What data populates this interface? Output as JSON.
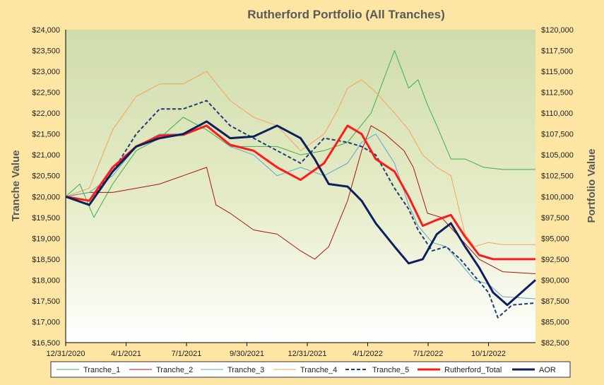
{
  "chart_data": {
    "type": "line",
    "title": "Rutherford Portfolio (All Tranches)",
    "ylabel": "Tranche Value",
    "y2label": "Portfolio Value",
    "ylim": [
      16500,
      24000
    ],
    "y2lim": [
      82500,
      120000
    ],
    "y_ticks": [
      "$16,500",
      "$17,000",
      "$17,500",
      "$18,000",
      "$18,500",
      "$19,000",
      "$19,500",
      "$20,000",
      "$20,500",
      "$21,000",
      "$21,500",
      "$22,000",
      "$22,500",
      "$23,000",
      "$23,500",
      "$24,000"
    ],
    "y2_ticks": [
      "$82,500",
      "$85,000",
      "$87,500",
      "$90,000",
      "$92,500",
      "$95,000",
      "$97,500",
      "$100,000",
      "$102,500",
      "$105,000",
      "$107,500",
      "$110,000",
      "$112,500",
      "$115,000",
      "$117,500",
      "$120,000"
    ],
    "x_ticks": [
      "12/31/2020",
      "4/1/2021",
      "7/1/2021",
      "9/30/2021",
      "12/31/2021",
      "4/1/2022",
      "7/1/2022",
      "10/1/2022"
    ],
    "grid": false,
    "legend_position": "bottom",
    "series": [
      {
        "name": "Tranche_1",
        "color": "#3fae49",
        "width": 1,
        "dash": false,
        "axis": "left",
        "x": [
          0,
          0.3,
          0.6,
          1,
          1.5,
          2,
          2.5,
          3,
          3.5,
          4,
          4.5,
          5,
          5.5,
          6,
          6.5,
          7,
          7.3,
          7.5,
          7.7,
          7.9,
          8.2,
          8.5,
          8.9,
          9.3,
          10.0
        ],
        "values": [
          20000,
          20300,
          19500,
          20300,
          21100,
          21400,
          21900,
          21600,
          21200,
          21200,
          21200,
          21000,
          21100,
          21300,
          22000,
          23500,
          22600,
          22800,
          22200,
          21700,
          20900,
          20900,
          20700,
          20650,
          20650
        ]
      },
      {
        "name": "Tranche_2",
        "color": "#a31515",
        "width": 1,
        "dash": false,
        "axis": "left",
        "x": [
          0,
          0.5,
          1,
          1.5,
          2,
          2.5,
          3,
          3.2,
          3.5,
          4,
          4.5,
          5,
          5.3,
          5.6,
          6,
          6.3,
          6.5,
          6.8,
          7,
          7.2,
          7.4,
          7.7,
          8,
          8.4,
          8.8,
          9.3,
          10.0
        ],
        "values": [
          20000,
          20100,
          20100,
          20200,
          20300,
          20500,
          20700,
          19800,
          19600,
          19200,
          19100,
          18700,
          18500,
          18800,
          19900,
          21100,
          21700,
          21500,
          21300,
          21100,
          20700,
          19600,
          19500,
          19000,
          18500,
          18200,
          18150
        ]
      },
      {
        "name": "Tranche_3",
        "color": "#5fa7c8",
        "width": 1,
        "dash": false,
        "axis": "left",
        "x": [
          0,
          0.5,
          1,
          1.5,
          2,
          2.5,
          3,
          3.5,
          4,
          4.5,
          5,
          5.5,
          6,
          6.3,
          6.6,
          7,
          7.3,
          7.5,
          7.8,
          8.1,
          8.4,
          8.7,
          9,
          9.3,
          10.0
        ],
        "values": [
          20000,
          20100,
          20500,
          21200,
          21500,
          21500,
          21700,
          21200,
          21000,
          20500,
          20700,
          20500,
          20800,
          21300,
          21500,
          20800,
          19800,
          19300,
          18900,
          18800,
          18400,
          18000,
          17900,
          17600,
          17550
        ]
      },
      {
        "name": "Tranche_4",
        "color": "#f2a25d",
        "width": 1,
        "dash": false,
        "axis": "left",
        "x": [
          0,
          0.5,
          1,
          1.5,
          2,
          2.5,
          3,
          3.5,
          4,
          4.5,
          5,
          5.5,
          5.8,
          6,
          6.3,
          6.6,
          7,
          7.3,
          7.6,
          7.9,
          8.2,
          8.5,
          8.7,
          9,
          9.3,
          10.0
        ],
        "values": [
          20000,
          20200,
          21600,
          22400,
          22700,
          22700,
          23000,
          22300,
          21900,
          21700,
          21100,
          21500,
          22100,
          22600,
          22800,
          22500,
          22000,
          21600,
          21000,
          20700,
          20500,
          19100,
          18800,
          18900,
          18850,
          18850
        ]
      },
      {
        "name": "Tranche_5",
        "color": "#1f3c78",
        "width": 2,
        "dash": true,
        "axis": "left",
        "x": [
          0,
          0.5,
          1,
          1.5,
          2,
          2.5,
          3,
          3.5,
          4,
          4.5,
          5,
          5.5,
          6,
          6.3,
          6.6,
          7,
          7.3,
          7.5,
          7.8,
          8.1,
          8.4,
          8.7,
          9,
          9.2,
          9.5,
          10.0
        ],
        "values": [
          20000,
          19900,
          20600,
          21500,
          22100,
          22100,
          22300,
          21700,
          21400,
          21100,
          20800,
          21400,
          21300,
          21200,
          21000,
          20200,
          19700,
          19200,
          18700,
          18800,
          18500,
          18100,
          17700,
          17100,
          17400,
          17450
        ]
      },
      {
        "name": "Rutherford_Total",
        "color": "#ff1a1a",
        "width": 3,
        "dash": false,
        "axis": "right",
        "x": [
          0,
          0.5,
          1,
          1.5,
          2,
          2.5,
          3,
          3.5,
          4,
          4.5,
          5,
          5.5,
          6,
          6.3,
          6.6,
          7,
          7.3,
          7.6,
          7.9,
          8.2,
          8.5,
          8.8,
          9.1,
          9.5,
          10.0
        ],
        "values": [
          100000,
          99500,
          103500,
          106000,
          107300,
          107400,
          108500,
          106200,
          105500,
          103500,
          102000,
          104000,
          108500,
          107500,
          104500,
          103000,
          100000,
          96500,
          97200,
          97800,
          95200,
          93000,
          92500,
          92500,
          92500
        ]
      },
      {
        "name": "AOR",
        "color": "#0d1f5c",
        "width": 3,
        "dash": false,
        "axis": "right",
        "x": [
          0,
          0.5,
          1,
          1.5,
          2,
          2.5,
          3,
          3.5,
          4,
          4.5,
          5,
          5.3,
          5.6,
          6,
          6.3,
          6.6,
          7,
          7.3,
          7.6,
          7.9,
          8.2,
          8.5,
          8.8,
          9.1,
          9.4,
          10.0
        ],
        "values": [
          100000,
          99000,
          103000,
          106000,
          107000,
          107500,
          109000,
          107000,
          107200,
          108500,
          107000,
          104500,
          101500,
          101200,
          99500,
          96800,
          94000,
          92000,
          92500,
          95500,
          96800,
          94000,
          91500,
          88500,
          87000,
          90000
        ]
      }
    ]
  }
}
